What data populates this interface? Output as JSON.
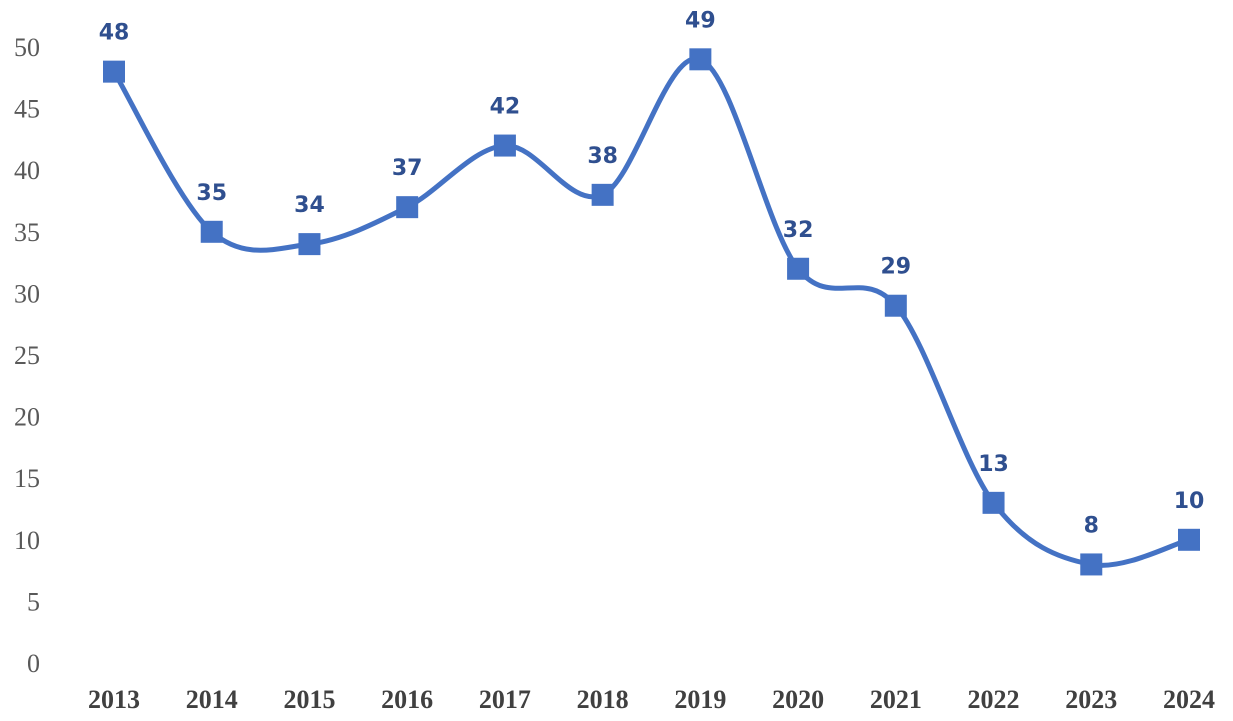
{
  "chart_data": {
    "type": "line",
    "smooth": true,
    "title": "",
    "xlabel": "",
    "ylabel": "",
    "categories": [
      "2013",
      "2014",
      "2015",
      "2016",
      "2017",
      "2018",
      "2019",
      "2020",
      "2021",
      "2022",
      "2023",
      "2024"
    ],
    "series": [
      {
        "values": [
          48,
          35,
          34,
          37,
          42,
          38,
          49,
          32,
          29,
          13,
          8,
          10
        ],
        "color": "#4472c4",
        "marker": "square",
        "data_labels": true
      }
    ],
    "ylim": [
      0,
      50
    ],
    "yticks": [
      0,
      5,
      10,
      15,
      20,
      25,
      30,
      35,
      40,
      45,
      50
    ],
    "grid": false,
    "legend": "none",
    "label_color": "#2f4f8f"
  }
}
